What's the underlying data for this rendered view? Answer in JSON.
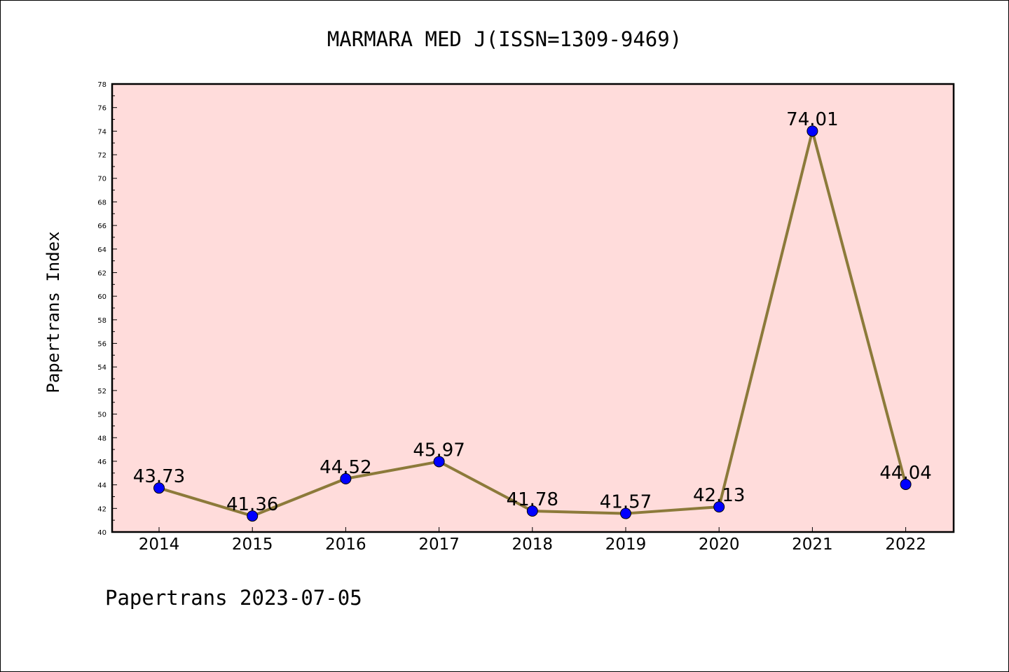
{
  "chart_data": {
    "type": "line",
    "title": "MARMARA MED J(ISSN=1309-9469)",
    "ylabel": "Papertrans Index",
    "xlabel": "",
    "categories": [
      "2014",
      "2015",
      "2016",
      "2017",
      "2018",
      "2019",
      "2020",
      "2021",
      "2022"
    ],
    "values": [
      43.73,
      41.36,
      44.52,
      45.97,
      41.78,
      41.57,
      42.13,
      74.01,
      44.04
    ],
    "data_labels": [
      "43.73",
      "41.36",
      "44.52",
      "45.97",
      "41.78",
      "41.57",
      "42.13",
      "74.01",
      "44.04"
    ],
    "ylim": [
      40,
      78
    ],
    "yticks": [
      "40",
      "42",
      "44",
      "46",
      "48",
      "50",
      "52",
      "54",
      "56",
      "58",
      "60",
      "62",
      "64",
      "66",
      "68",
      "70",
      "72",
      "74",
      "76",
      "78"
    ],
    "grid": false,
    "legend": "none",
    "colors": {
      "plot_background": "#ffdcdb",
      "line": "#8c7a3a",
      "marker": "#0000ff"
    }
  },
  "footer": "Papertrans 2023-07-05"
}
